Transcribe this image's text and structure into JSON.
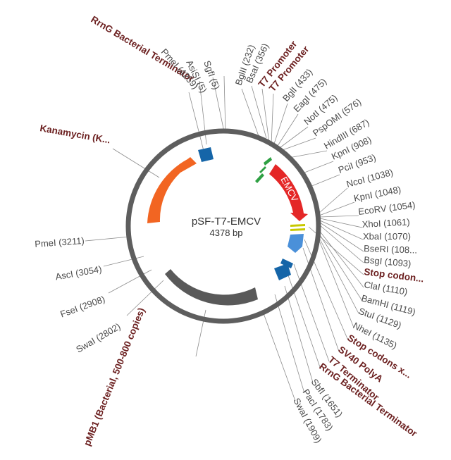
{
  "plasmid": {
    "name": "pSF-T7-EMCV",
    "size": "4378 bp",
    "length_bp": 4378,
    "backbone_color": "#5e5e5e"
  },
  "features": [
    {
      "id": "kanamycin",
      "label": "Kanamycin (K...",
      "start": 2960,
      "end": 3960,
      "color": "#f26522",
      "type": "arrow-ccw"
    },
    {
      "id": "rrng-top",
      "label": "RrnG Bacterial Terminator",
      "start": 4230,
      "end": 4330,
      "color": "#1565a8",
      "type": "box"
    },
    {
      "id": "t7-promoters",
      "label": "T7 Promoter",
      "start": 420,
      "end": 480,
      "color": "#2ea043",
      "type": "small"
    },
    {
      "id": "emcv",
      "label": "EMCV",
      "start": 590,
      "end": 1030,
      "color": "#e42727",
      "type": "arrow-cw"
    },
    {
      "id": "stop-codons-1",
      "label": "Stop codon...",
      "start": 1090,
      "end": 1102,
      "color": "#c8c800",
      "type": "thin"
    },
    {
      "id": "sv40",
      "label": "SV40 PolyA",
      "start": 1135,
      "end": 1270,
      "color": "#4a90d9",
      "type": "arrow-cw"
    },
    {
      "id": "t7-term",
      "label": "T7 Terminator",
      "start": 1320,
      "end": 1365,
      "color": "#1565a8",
      "type": "box"
    },
    {
      "id": "rrng-bottom",
      "label": "RrnG Bacterial Terminator",
      "start": 1385,
      "end": 1495,
      "color": "#1565a8",
      "type": "box"
    },
    {
      "id": "pmb1",
      "label": "pMB1 (Bacterial, 500-800 copies)",
      "start": 1960,
      "end": 2620,
      "color": "#595959",
      "type": "arc"
    }
  ],
  "labels": [
    {
      "text": "RrnG Bacterial Terminator",
      "kind": "feature"
    },
    {
      "text": "PmeI (4259)",
      "kind": "site"
    },
    {
      "text": "AsiSI (5)",
      "kind": "site"
    },
    {
      "text": "SgfI (5)",
      "kind": "site"
    },
    {
      "text": "BglII (232)",
      "kind": "site"
    },
    {
      "text": "BsaI (356)",
      "kind": "site"
    },
    {
      "text": "T7 Promoter",
      "kind": "feature"
    },
    {
      "text": "T7 Promoter",
      "kind": "feature"
    },
    {
      "text": "BglI (433)",
      "kind": "site"
    },
    {
      "text": "EagI (475)",
      "kind": "site"
    },
    {
      "text": "NotI (475)",
      "kind": "site"
    },
    {
      "text": "PspOMI (576)",
      "kind": "site"
    },
    {
      "text": "HindIII (687)",
      "kind": "site"
    },
    {
      "text": "KpnI (908)",
      "kind": "site"
    },
    {
      "text": "PciI (953)",
      "kind": "site"
    },
    {
      "text": "NcoI (1038)",
      "kind": "site"
    },
    {
      "text": "KpnI (1048)",
      "kind": "site"
    },
    {
      "text": "EcoRV (1054)",
      "kind": "site"
    },
    {
      "text": "XhoI (1061)",
      "kind": "site"
    },
    {
      "text": "XbaI (1070)",
      "kind": "site"
    },
    {
      "text": "BseRI (108...",
      "kind": "site"
    },
    {
      "text": "BsgI (1093)",
      "kind": "site"
    },
    {
      "text": "Stop codon...",
      "kind": "feature"
    },
    {
      "text": "ClaI (1110)",
      "kind": "site"
    },
    {
      "text": "BamHI (1119)",
      "kind": "site"
    },
    {
      "text": "StuI (1129)",
      "kind": "site"
    },
    {
      "text": "NheI (1135)",
      "kind": "site"
    },
    {
      "text": "Stop codons x...",
      "kind": "feature"
    },
    {
      "text": "SV40 PolyA",
      "kind": "feature"
    },
    {
      "text": "T7 Terminator",
      "kind": "feature"
    },
    {
      "text": "RrnG Bacterial Terminator",
      "kind": "feature"
    },
    {
      "text": "SbfI (1651)",
      "kind": "site"
    },
    {
      "text": "PacI (1783)",
      "kind": "site"
    },
    {
      "text": "SwaI (1909)",
      "kind": "site"
    },
    {
      "text": "pMB1 (Bacterial, 500-800 copies)",
      "kind": "feature"
    },
    {
      "text": "SwaI (2802)",
      "kind": "site"
    },
    {
      "text": "FseI (2908)",
      "kind": "site"
    },
    {
      "text": "AscI (3054)",
      "kind": "site"
    },
    {
      "text": "PmeI (3211)",
      "kind": "site"
    },
    {
      "text": "Kanamycin (K...",
      "kind": "feature"
    }
  ]
}
